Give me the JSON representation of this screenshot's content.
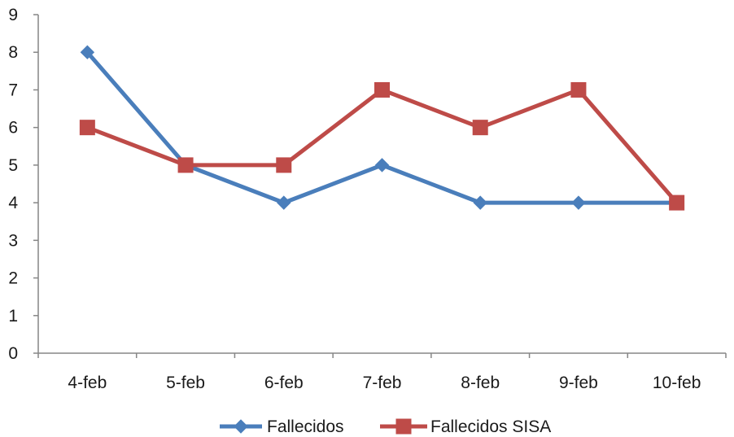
{
  "chart_data": {
    "type": "line",
    "categories": [
      "4-feb",
      "5-feb",
      "6-feb",
      "7-feb",
      "8-feb",
      "9-feb",
      "10-feb"
    ],
    "series": [
      {
        "name": "Fallecidos",
        "values": [
          8,
          5,
          4,
          5,
          4,
          4,
          4
        ],
        "color": "#4a7ebb",
        "marker": "diamond"
      },
      {
        "name": "Fallecidos SISA",
        "values": [
          6,
          5,
          5,
          7,
          6,
          7,
          4
        ],
        "color": "#be4b48",
        "marker": "square"
      }
    ],
    "ylim": [
      0,
      9
    ],
    "yticks": [
      0,
      1,
      2,
      3,
      4,
      5,
      6,
      7,
      8,
      9
    ],
    "grid": false,
    "legend": "bottom",
    "axis_color": "#868686"
  }
}
